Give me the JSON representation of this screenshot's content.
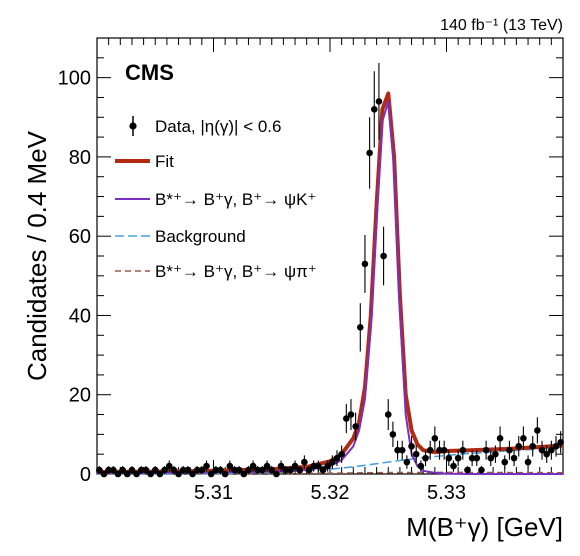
{
  "experiment": "CMS",
  "lumi_text": "140 fb⁻¹ (13 TeV)",
  "colors": {
    "data": "#000000",
    "fit": "#b22a12",
    "signal": "#7b2fbe",
    "background": "#4aa3df",
    "pi_bkg": "#9b5a48"
  },
  "legend": [
    {
      "label": "Data, |η(γ)| < 0.6",
      "style": "marker"
    },
    {
      "label": "Fit",
      "style": "solid-thick"
    },
    {
      "label": "B*⁺→ B⁺γ, B⁺→ ψK⁺",
      "style": "solid"
    },
    {
      "label": "Background",
      "style": "dashed"
    },
    {
      "label": "B*⁺→ B⁺γ, B⁺→ ψπ⁺",
      "style": "dashed"
    }
  ],
  "chart_data": {
    "type": "scatter",
    "title": "",
    "xlabel": "M(B⁺γ) [GeV]",
    "ylabel": "Candidates / 0.4 MeV",
    "xlim": [
      5.3,
      5.34
    ],
    "ylim": [
      0,
      110
    ],
    "x_ticks": [
      5.31,
      5.32,
      5.33
    ],
    "x_tick_labels": [
      "5.31",
      "5.32",
      "5.33"
    ],
    "y_ticks": [
      0,
      20,
      40,
      60,
      80,
      100
    ],
    "y_tick_labels": [
      "0",
      "20",
      "40",
      "60",
      "80",
      "100"
    ],
    "grid": false,
    "legend_position": "top-left",
    "series": [
      {
        "name": "Data, |η(γ)| < 0.6",
        "kind": "points-with-errors",
        "x": [
          5.3002,
          5.3006,
          5.301,
          5.3014,
          5.3018,
          5.3022,
          5.3026,
          5.303,
          5.3034,
          5.3038,
          5.3042,
          5.3046,
          5.305,
          5.3054,
          5.3058,
          5.3062,
          5.3066,
          5.307,
          5.3074,
          5.3078,
          5.3082,
          5.3086,
          5.309,
          5.3094,
          5.3098,
          5.3102,
          5.3106,
          5.311,
          5.3114,
          5.3118,
          5.3122,
          5.3126,
          5.313,
          5.3134,
          5.3138,
          5.3142,
          5.3146,
          5.315,
          5.3154,
          5.3158,
          5.3162,
          5.3166,
          5.317,
          5.3174,
          5.3178,
          5.3182,
          5.3186,
          5.319,
          5.3194,
          5.3198,
          5.3202,
          5.3206,
          5.321,
          5.3214,
          5.3218,
          5.3222,
          5.3226,
          5.323,
          5.3234,
          5.3238,
          5.3242,
          5.3246,
          5.325,
          5.3254,
          5.3258,
          5.3262,
          5.3266,
          5.327,
          5.3274,
          5.3278,
          5.3282,
          5.3286,
          5.329,
          5.3294,
          5.3298,
          5.3302,
          5.3306,
          5.331,
          5.3314,
          5.3318,
          5.3322,
          5.3326,
          5.333,
          5.3334,
          5.3338,
          5.3342,
          5.3346,
          5.335,
          5.3354,
          5.3358,
          5.3362,
          5.3366,
          5.337,
          5.3374,
          5.3378,
          5.3382,
          5.3386,
          5.339,
          5.3394,
          5.3398
        ],
        "y": [
          1,
          0,
          1,
          1,
          0,
          1,
          0,
          1,
          0,
          1,
          1,
          0,
          1,
          0,
          1,
          2,
          1,
          0,
          1,
          1,
          0,
          1,
          1,
          2,
          0,
          1,
          1,
          0,
          2,
          1,
          1,
          0,
          1,
          2,
          1,
          1,
          2,
          1,
          0,
          2,
          1,
          1,
          2,
          1,
          3,
          1,
          2,
          2,
          1,
          2,
          3,
          4,
          5,
          14,
          15,
          12,
          37,
          53,
          81,
          92,
          94,
          55,
          15,
          10,
          6,
          6,
          3,
          7,
          5,
          2,
          4,
          6,
          9,
          6,
          6,
          4,
          2,
          4,
          6,
          1,
          4,
          4,
          1,
          6,
          4,
          5,
          9,
          3,
          6,
          4,
          7,
          9,
          3,
          7,
          11,
          6,
          5,
          6,
          7,
          8
        ],
        "yerr": [
          1,
          0.7,
          1,
          1,
          0.7,
          1,
          0.7,
          1,
          0.7,
          1,
          1,
          0.7,
          1,
          0.7,
          1,
          1.4,
          1,
          0.7,
          1,
          1,
          0.7,
          1,
          1,
          1.4,
          0.7,
          1,
          1,
          0.7,
          1.4,
          1,
          1,
          0.7,
          1,
          1.4,
          1,
          1,
          1.4,
          1,
          0.7,
          1.4,
          1,
          1,
          1.4,
          1,
          1.7,
          1,
          1.4,
          1.4,
          1,
          1.4,
          1.7,
          2,
          2.2,
          3.7,
          3.9,
          3.5,
          6.1,
          7.3,
          9,
          9.6,
          9.7,
          7.4,
          3.9,
          3.2,
          2.4,
          2.4,
          1.7,
          2.6,
          2.2,
          1.4,
          2,
          2.4,
          3,
          2.4,
          2.4,
          2,
          1.4,
          2,
          2.4,
          1,
          2,
          2,
          1,
          2.4,
          2,
          2.2,
          3,
          1.7,
          2.4,
          2,
          2.6,
          3,
          1.7,
          2.6,
          3.3,
          2.4,
          2.2,
          2.4,
          2.6,
          2.8
        ]
      },
      {
        "name": "Fit",
        "kind": "curve",
        "x": [
          5.3,
          5.305,
          5.31,
          5.315,
          5.318,
          5.32,
          5.321,
          5.322,
          5.3225,
          5.323,
          5.3235,
          5.324,
          5.3245,
          5.325,
          5.3255,
          5.326,
          5.3265,
          5.327,
          5.3275,
          5.328,
          5.329,
          5.33,
          5.332,
          5.335,
          5.338,
          5.34
        ],
        "y": [
          0.5,
          0.6,
          0.8,
          1.2,
          1.8,
          3.2,
          5,
          9,
          13,
          22,
          40,
          68,
          92,
          96,
          80,
          45,
          20,
          11,
          7.5,
          6,
          5.5,
          5.8,
          6,
          6.3,
          6.8,
          7.2
        ]
      },
      {
        "name": "B*⁺→ B⁺γ, B⁺→ ψK⁺",
        "kind": "curve",
        "x": [
          5.3,
          5.305,
          5.31,
          5.315,
          5.318,
          5.32,
          5.321,
          5.322,
          5.3225,
          5.323,
          5.3235,
          5.324,
          5.3245,
          5.325,
          5.3255,
          5.326,
          5.3265,
          5.327,
          5.3275,
          5.328,
          5.329,
          5.33,
          5.332,
          5.335,
          5.338,
          5.34
        ],
        "y": [
          0.3,
          0.3,
          0.4,
          0.6,
          1,
          2,
          3.5,
          7,
          11,
          19,
          37,
          64,
          89,
          94,
          77,
          41,
          15,
          5,
          2,
          0.8,
          0.3,
          0.1,
          0,
          0,
          0,
          0
        ]
      },
      {
        "name": "Background",
        "kind": "curve",
        "x": [
          5.3,
          5.305,
          5.31,
          5.315,
          5.318,
          5.32,
          5.322,
          5.324,
          5.326,
          5.328,
          5.33,
          5.332,
          5.335,
          5.338,
          5.34
        ],
        "y": [
          0,
          0,
          0.1,
          0.4,
          0.8,
          1.2,
          1.8,
          2.6,
          3.4,
          4.1,
          4.7,
          5.2,
          5.8,
          6.3,
          6.8
        ]
      },
      {
        "name": "B*⁺→ B⁺γ, B⁺→ ψπ⁺",
        "kind": "curve",
        "x": [
          5.3,
          5.31,
          5.32,
          5.325,
          5.33,
          5.335,
          5.34
        ],
        "y": [
          0.05,
          0.1,
          0.2,
          0.35,
          0.4,
          0.35,
          0.3
        ]
      }
    ]
  }
}
